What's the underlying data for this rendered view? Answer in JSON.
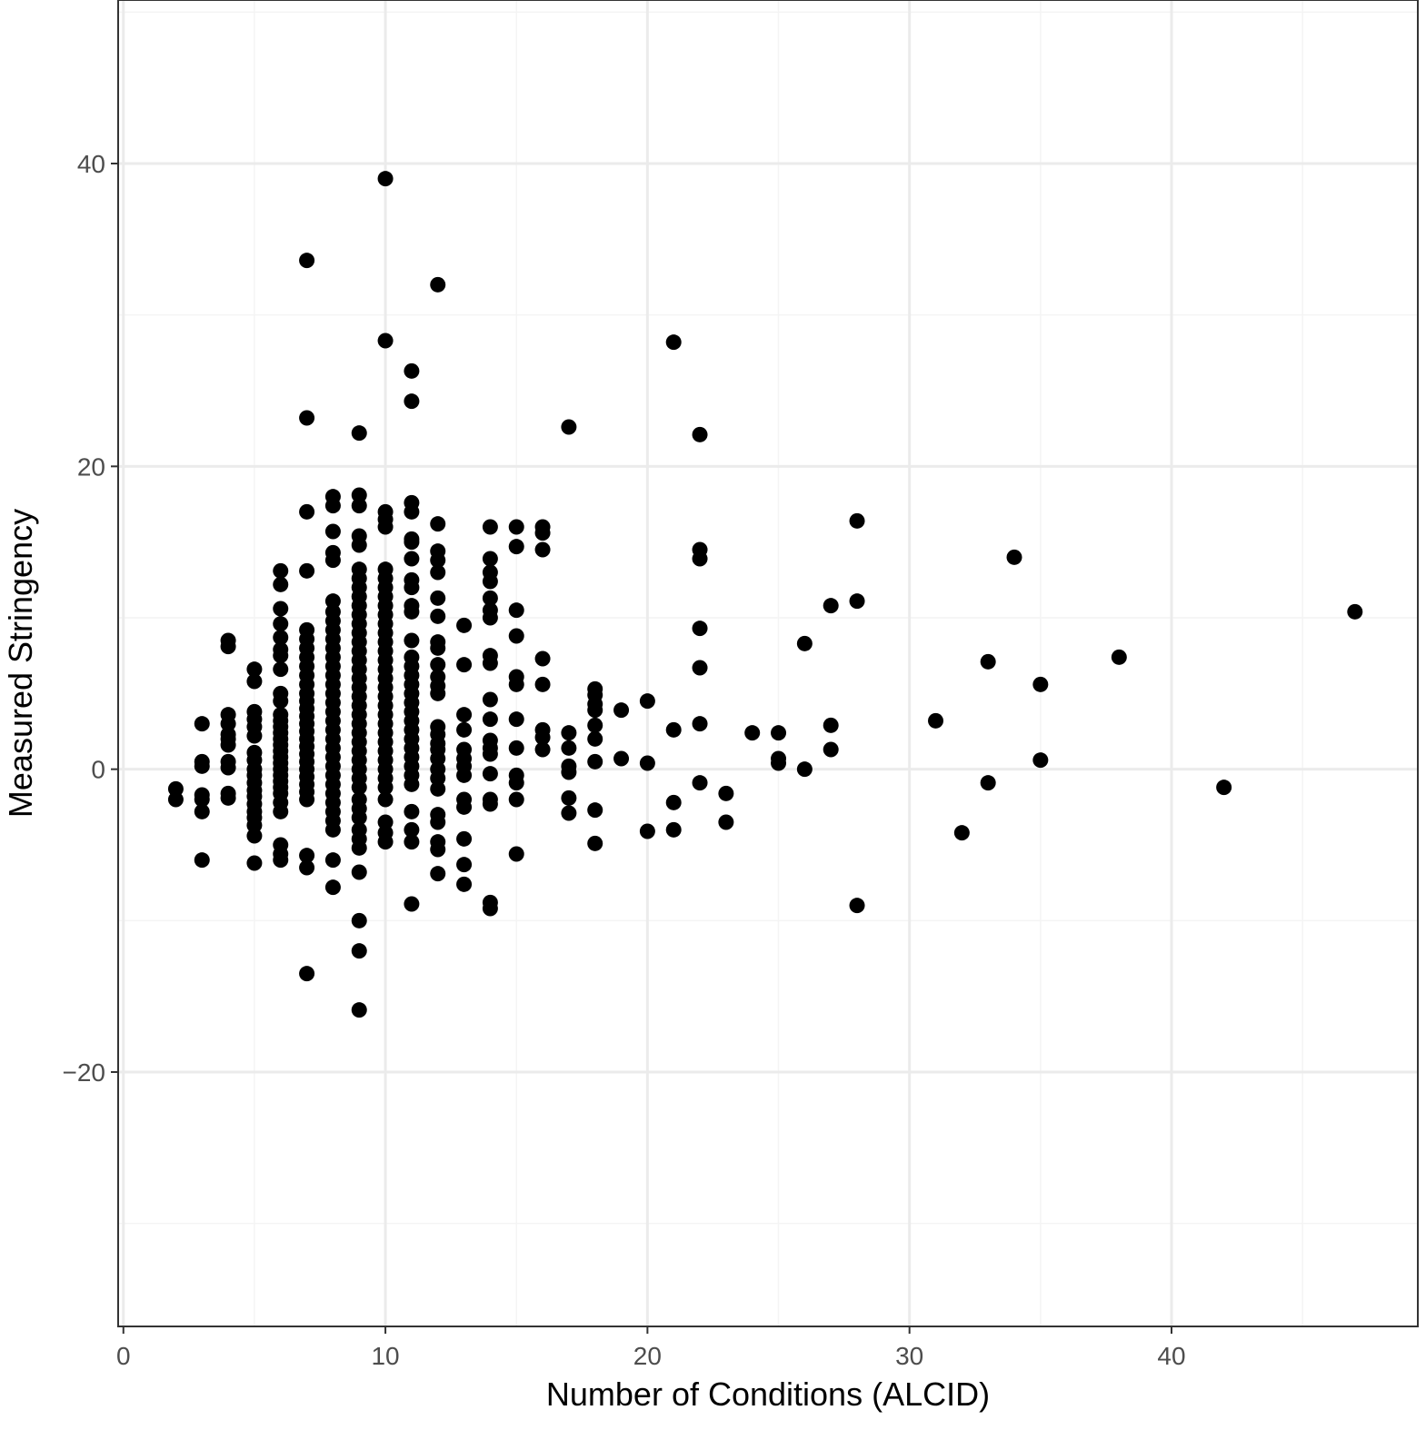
{
  "chart_data": {
    "type": "scatter",
    "title": "",
    "xlabel": "Number of Conditions (ALCID)",
    "ylabel": "Measured Stringency",
    "xlim": [
      -0.2,
      49.4
    ],
    "ylim": [
      -36.8,
      50.8
    ],
    "x_ticks": [
      0,
      10,
      20,
      30,
      40
    ],
    "x_tick_labels": [
      "0",
      "10",
      "20",
      "30",
      "40"
    ],
    "y_ticks": [
      -20,
      0,
      20,
      40
    ],
    "y_tick_labels": [
      "−20",
      "0",
      "20",
      "40"
    ],
    "grid": true,
    "legend": "none",
    "colors": {
      "point": "#000000",
      "grid_major": "#ebebeb",
      "grid_minor": "#f4f4f4",
      "panel_border": "#333333",
      "tick_text": "#4d4d4d",
      "axis_title": "#000000"
    },
    "points": [
      [
        2,
        -1.3
      ],
      [
        2,
        -2.0
      ],
      [
        3,
        3.0
      ],
      [
        3,
        0.5
      ],
      [
        3,
        0.2
      ],
      [
        3,
        -1.7
      ],
      [
        3,
        -2.0
      ],
      [
        3,
        -2.8
      ],
      [
        3,
        -6.0
      ],
      [
        4,
        8.5
      ],
      [
        4,
        8.1
      ],
      [
        4,
        3.6
      ],
      [
        4,
        3.0
      ],
      [
        4,
        2.3
      ],
      [
        4,
        2.0
      ],
      [
        4,
        1.6
      ],
      [
        4,
        0.5
      ],
      [
        4,
        0.1
      ],
      [
        4,
        -1.6
      ],
      [
        4,
        -1.9
      ],
      [
        5,
        6.6
      ],
      [
        5,
        5.8
      ],
      [
        5,
        3.8
      ],
      [
        5,
        3.3
      ],
      [
        5,
        2.8
      ],
      [
        5,
        2.2
      ],
      [
        5,
        1.1
      ],
      [
        5,
        0.6
      ],
      [
        5,
        0.0
      ],
      [
        5,
        -0.4
      ],
      [
        5,
        -0.9
      ],
      [
        5,
        -1.4
      ],
      [
        5,
        -1.8
      ],
      [
        5,
        -2.3
      ],
      [
        5,
        -2.8
      ],
      [
        5,
        -3.2
      ],
      [
        5,
        -3.7
      ],
      [
        5,
        -4.4
      ],
      [
        5,
        -6.2
      ],
      [
        6,
        13.1
      ],
      [
        6,
        12.2
      ],
      [
        6,
        10.6
      ],
      [
        6,
        9.6
      ],
      [
        6,
        8.7
      ],
      [
        6,
        7.9
      ],
      [
        6,
        7.5
      ],
      [
        6,
        6.6
      ],
      [
        6,
        5.0
      ],
      [
        6,
        4.5
      ],
      [
        6,
        3.6
      ],
      [
        6,
        3.2
      ],
      [
        6,
        2.8
      ],
      [
        6,
        2.4
      ],
      [
        6,
        2.0
      ],
      [
        6,
        1.6
      ],
      [
        6,
        1.2
      ],
      [
        6,
        0.8
      ],
      [
        6,
        0.4
      ],
      [
        6,
        0.0
      ],
      [
        6,
        -0.4
      ],
      [
        6,
        -0.8
      ],
      [
        6,
        -1.2
      ],
      [
        6,
        -1.6
      ],
      [
        6,
        -2.2
      ],
      [
        6,
        -2.8
      ],
      [
        6,
        -5.0
      ],
      [
        6,
        -5.6
      ],
      [
        6,
        -6.0
      ],
      [
        7,
        33.6
      ],
      [
        7,
        23.2
      ],
      [
        7,
        17.0
      ],
      [
        7,
        13.1
      ],
      [
        7,
        9.2
      ],
      [
        7,
        8.6
      ],
      [
        7,
        8.0
      ],
      [
        7,
        7.4
      ],
      [
        7,
        6.8
      ],
      [
        7,
        6.2
      ],
      [
        7,
        5.6
      ],
      [
        7,
        5.0
      ],
      [
        7,
        4.5
      ],
      [
        7,
        4.0
      ],
      [
        7,
        3.5
      ],
      [
        7,
        3.0
      ],
      [
        7,
        2.5
      ],
      [
        7,
        2.0
      ],
      [
        7,
        1.5
      ],
      [
        7,
        1.0
      ],
      [
        7,
        0.5
      ],
      [
        7,
        0.0
      ],
      [
        7,
        -0.5
      ],
      [
        7,
        -1.0
      ],
      [
        7,
        -1.5
      ],
      [
        7,
        -2.0
      ],
      [
        7,
        -5.7
      ],
      [
        7,
        -6.5
      ],
      [
        7,
        -13.5
      ],
      [
        8,
        18.0
      ],
      [
        8,
        17.4
      ],
      [
        8,
        15.7
      ],
      [
        8,
        14.3
      ],
      [
        8,
        13.8
      ],
      [
        8,
        11.1
      ],
      [
        8,
        10.4
      ],
      [
        8,
        9.8
      ],
      [
        8,
        9.2
      ],
      [
        8,
        8.6
      ],
      [
        8,
        8.0
      ],
      [
        8,
        7.4
      ],
      [
        8,
        6.8
      ],
      [
        8,
        6.2
      ],
      [
        8,
        5.6
      ],
      [
        8,
        5.0
      ],
      [
        8,
        4.4
      ],
      [
        8,
        3.8
      ],
      [
        8,
        3.2
      ],
      [
        8,
        2.6
      ],
      [
        8,
        2.0
      ],
      [
        8,
        1.4
      ],
      [
        8,
        0.8
      ],
      [
        8,
        0.2
      ],
      [
        8,
        -0.4
      ],
      [
        8,
        -1.0
      ],
      [
        8,
        -1.6
      ],
      [
        8,
        -2.2
      ],
      [
        8,
        -2.8
      ],
      [
        8,
        -3.4
      ],
      [
        8,
        -4.0
      ],
      [
        8,
        -6.0
      ],
      [
        8,
        -7.8
      ],
      [
        9,
        22.2
      ],
      [
        9,
        18.1
      ],
      [
        9,
        17.4
      ],
      [
        9,
        15.4
      ],
      [
        9,
        14.8
      ],
      [
        9,
        13.2
      ],
      [
        9,
        12.6
      ],
      [
        9,
        12.0
      ],
      [
        9,
        11.4
      ],
      [
        9,
        10.8
      ],
      [
        9,
        10.2
      ],
      [
        9,
        9.6
      ],
      [
        9,
        9.0
      ],
      [
        9,
        8.4
      ],
      [
        9,
        7.8
      ],
      [
        9,
        7.2
      ],
      [
        9,
        6.6
      ],
      [
        9,
        6.0
      ],
      [
        9,
        5.4
      ],
      [
        9,
        4.8
      ],
      [
        9,
        4.2
      ],
      [
        9,
        3.6
      ],
      [
        9,
        3.0
      ],
      [
        9,
        2.4
      ],
      [
        9,
        1.8
      ],
      [
        9,
        1.2
      ],
      [
        9,
        0.6
      ],
      [
        9,
        0.0
      ],
      [
        9,
        -0.6
      ],
      [
        9,
        -1.2
      ],
      [
        9,
        -2.0
      ],
      [
        9,
        -2.6
      ],
      [
        9,
        -3.2
      ],
      [
        9,
        -4.0
      ],
      [
        9,
        -4.6
      ],
      [
        9,
        -5.2
      ],
      [
        9,
        -6.8
      ],
      [
        9,
        -10.0
      ],
      [
        9,
        -12.0
      ],
      [
        9,
        -15.9
      ],
      [
        10,
        39.0
      ],
      [
        10,
        28.3
      ],
      [
        10,
        17.0
      ],
      [
        10,
        16.5
      ],
      [
        10,
        16.0
      ],
      [
        10,
        13.2
      ],
      [
        10,
        12.6
      ],
      [
        10,
        12.0
      ],
      [
        10,
        11.4
      ],
      [
        10,
        10.8
      ],
      [
        10,
        10.2
      ],
      [
        10,
        9.6
      ],
      [
        10,
        9.0
      ],
      [
        10,
        8.4
      ],
      [
        10,
        7.8
      ],
      [
        10,
        7.2
      ],
      [
        10,
        6.6
      ],
      [
        10,
        6.0
      ],
      [
        10,
        5.4
      ],
      [
        10,
        4.8
      ],
      [
        10,
        4.2
      ],
      [
        10,
        3.6
      ],
      [
        10,
        3.0
      ],
      [
        10,
        2.4
      ],
      [
        10,
        1.8
      ],
      [
        10,
        1.2
      ],
      [
        10,
        0.6
      ],
      [
        10,
        0.0
      ],
      [
        10,
        -0.6
      ],
      [
        10,
        -1.2
      ],
      [
        10,
        -2.0
      ],
      [
        10,
        -3.5
      ],
      [
        10,
        -4.2
      ],
      [
        10,
        -4.8
      ],
      [
        11,
        26.3
      ],
      [
        11,
        24.3
      ],
      [
        11,
        17.6
      ],
      [
        11,
        17.0
      ],
      [
        11,
        15.2
      ],
      [
        11,
        15.0
      ],
      [
        11,
        13.9
      ],
      [
        11,
        12.5
      ],
      [
        11,
        12.0
      ],
      [
        11,
        10.8
      ],
      [
        11,
        10.4
      ],
      [
        11,
        8.5
      ],
      [
        11,
        7.4
      ],
      [
        11,
        6.8
      ],
      [
        11,
        6.2
      ],
      [
        11,
        5.6
      ],
      [
        11,
        5.0
      ],
      [
        11,
        4.4
      ],
      [
        11,
        3.8
      ],
      [
        11,
        3.2
      ],
      [
        11,
        2.6
      ],
      [
        11,
        2.0
      ],
      [
        11,
        1.4
      ],
      [
        11,
        0.8
      ],
      [
        11,
        0.2
      ],
      [
        11,
        -0.4
      ],
      [
        11,
        -1.0
      ],
      [
        11,
        -2.8
      ],
      [
        11,
        -4.0
      ],
      [
        11,
        -4.8
      ],
      [
        11,
        -8.9
      ],
      [
        12,
        32.0
      ],
      [
        12,
        16.2
      ],
      [
        12,
        14.4
      ],
      [
        12,
        13.8
      ],
      [
        12,
        13.0
      ],
      [
        12,
        11.3
      ],
      [
        12,
        10.1
      ],
      [
        12,
        8.4
      ],
      [
        12,
        8.0
      ],
      [
        12,
        6.9
      ],
      [
        12,
        6.1
      ],
      [
        12,
        5.5
      ],
      [
        12,
        5.0
      ],
      [
        12,
        2.8
      ],
      [
        12,
        2.3
      ],
      [
        12,
        1.7
      ],
      [
        12,
        1.3
      ],
      [
        12,
        0.7
      ],
      [
        12,
        0.0
      ],
      [
        12,
        -0.6
      ],
      [
        12,
        -1.3
      ],
      [
        12,
        -3.0
      ],
      [
        12,
        -3.5
      ],
      [
        12,
        -4.8
      ],
      [
        12,
        -5.3
      ],
      [
        12,
        -6.9
      ],
      [
        13,
        9.5
      ],
      [
        13,
        6.9
      ],
      [
        13,
        3.6
      ],
      [
        13,
        2.6
      ],
      [
        13,
        1.3
      ],
      [
        13,
        0.7
      ],
      [
        13,
        0.2
      ],
      [
        13,
        -0.4
      ],
      [
        13,
        -2.0
      ],
      [
        13,
        -2.5
      ],
      [
        13,
        -4.6
      ],
      [
        13,
        -6.3
      ],
      [
        13,
        -7.6
      ],
      [
        14,
        16.0
      ],
      [
        14,
        13.9
      ],
      [
        14,
        13.0
      ],
      [
        14,
        12.4
      ],
      [
        14,
        11.3
      ],
      [
        14,
        10.5
      ],
      [
        14,
        10.0
      ],
      [
        14,
        7.5
      ],
      [
        14,
        7.0
      ],
      [
        14,
        4.6
      ],
      [
        14,
        3.3
      ],
      [
        14,
        1.9
      ],
      [
        14,
        1.4
      ],
      [
        14,
        1.0
      ],
      [
        14,
        -0.3
      ],
      [
        14,
        -2.0
      ],
      [
        14,
        -2.3
      ],
      [
        14,
        -8.8
      ],
      [
        14,
        -9.2
      ],
      [
        15,
        16.0
      ],
      [
        15,
        14.7
      ],
      [
        15,
        10.5
      ],
      [
        15,
        8.8
      ],
      [
        15,
        6.1
      ],
      [
        15,
        5.6
      ],
      [
        15,
        3.3
      ],
      [
        15,
        1.4
      ],
      [
        15,
        -0.4
      ],
      [
        15,
        -0.9
      ],
      [
        15,
        -2.0
      ],
      [
        15,
        -5.6
      ],
      [
        16,
        16.0
      ],
      [
        16,
        15.6
      ],
      [
        16,
        14.5
      ],
      [
        16,
        7.3
      ],
      [
        16,
        5.6
      ],
      [
        16,
        2.6
      ],
      [
        16,
        2.1
      ],
      [
        16,
        1.3
      ],
      [
        17,
        22.6
      ],
      [
        17,
        2.4
      ],
      [
        17,
        1.4
      ],
      [
        17,
        0.2
      ],
      [
        17,
        -0.2
      ],
      [
        17,
        -1.9
      ],
      [
        17,
        -2.9
      ],
      [
        18,
        5.3
      ],
      [
        18,
        4.9
      ],
      [
        18,
        4.3
      ],
      [
        18,
        3.9
      ],
      [
        18,
        2.9
      ],
      [
        18,
        2.0
      ],
      [
        18,
        0.5
      ],
      [
        18,
        -2.7
      ],
      [
        18,
        -4.9
      ],
      [
        19,
        3.9
      ],
      [
        19,
        0.7
      ],
      [
        20,
        4.5
      ],
      [
        20,
        0.4
      ],
      [
        20,
        -4.1
      ],
      [
        21,
        28.2
      ],
      [
        21,
        2.6
      ],
      [
        21,
        -2.2
      ],
      [
        21,
        -4.0
      ],
      [
        22,
        22.1
      ],
      [
        22,
        14.5
      ],
      [
        22,
        13.9
      ],
      [
        22,
        9.3
      ],
      [
        22,
        6.7
      ],
      [
        22,
        3.0
      ],
      [
        22,
        -0.9
      ],
      [
        23,
        -1.6
      ],
      [
        23,
        -3.5
      ],
      [
        24,
        2.4
      ],
      [
        25,
        2.4
      ],
      [
        25,
        0.7
      ],
      [
        25,
        0.4
      ],
      [
        26,
        8.3
      ],
      [
        26,
        0.0
      ],
      [
        27,
        10.8
      ],
      [
        27,
        2.9
      ],
      [
        27,
        1.3
      ],
      [
        28,
        16.4
      ],
      [
        28,
        11.1
      ],
      [
        28,
        -9.0
      ],
      [
        31,
        3.2
      ],
      [
        32,
        -4.2
      ],
      [
        33,
        7.1
      ],
      [
        33,
        -0.9
      ],
      [
        34,
        14.0
      ],
      [
        35,
        5.6
      ],
      [
        35,
        0.6
      ],
      [
        38,
        7.4
      ],
      [
        42,
        -1.2
      ],
      [
        47,
        10.4
      ]
    ]
  }
}
